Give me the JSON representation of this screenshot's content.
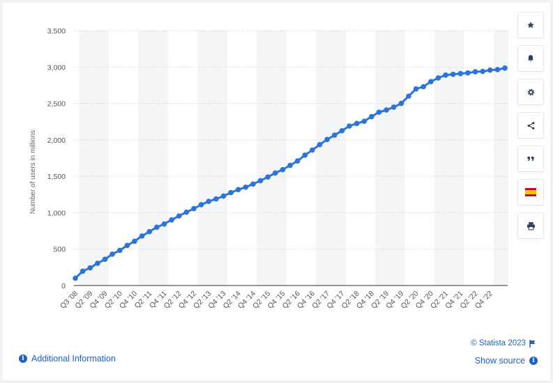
{
  "chart_data": {
    "type": "line",
    "title": "",
    "xlabel": "",
    "ylabel": "Number of users in millions",
    "ylim": [
      0,
      3500
    ],
    "yticks": [
      0,
      500,
      1000,
      1500,
      2000,
      2500,
      3000,
      3500
    ],
    "ytick_labels": [
      "0",
      "500",
      "1,000",
      "1,500",
      "2,000",
      "2,500",
      "3,000",
      "3,500"
    ],
    "grid": "horizontal-dotted",
    "series_color": "#2b74d8",
    "xtick_labels": [
      "Q3 '08",
      "Q2 '09",
      "Q4 '09",
      "Q2 '10",
      "Q4 '10",
      "Q2 '11",
      "Q4 '11",
      "Q2 '12",
      "Q4 '12",
      "Q2 '13",
      "Q4 '13",
      "Q2 '14",
      "Q4 '14",
      "Q2 '15",
      "Q4 '15",
      "Q2 '16",
      "Q4 '16",
      "Q2 '17",
      "Q4 '17",
      "Q2 '18",
      "Q4 '18",
      "Q2 '19",
      "Q4 '19",
      "Q2 '20",
      "Q4 '20",
      "Q2 '21",
      "Q4 '21",
      "Q2 '22",
      "Q4 '22"
    ],
    "x": [
      "Q3 '08",
      "Q4 '08",
      "Q1 '09",
      "Q2 '09",
      "Q3 '09",
      "Q4 '09",
      "Q1 '10",
      "Q2 '10",
      "Q3 '10",
      "Q4 '10",
      "Q1 '11",
      "Q2 '11",
      "Q3 '11",
      "Q4 '11",
      "Q1 '12",
      "Q2 '12",
      "Q3 '12",
      "Q4 '12",
      "Q1 '13",
      "Q2 '13",
      "Q3 '13",
      "Q4 '13",
      "Q1 '14",
      "Q2 '14",
      "Q3 '14",
      "Q4 '14",
      "Q1 '15",
      "Q2 '15",
      "Q3 '15",
      "Q4 '15",
      "Q1 '16",
      "Q2 '16",
      "Q3 '16",
      "Q4 '16",
      "Q1 '17",
      "Q2 '17",
      "Q3 '17",
      "Q4 '17",
      "Q1 '18",
      "Q2 '18",
      "Q3 '18",
      "Q4 '18",
      "Q1 '19",
      "Q2 '19",
      "Q3 '19",
      "Q4 '19",
      "Q1 '20",
      "Q2 '20",
      "Q3 '20",
      "Q4 '20",
      "Q1 '21",
      "Q2 '21",
      "Q3 '21",
      "Q4 '21",
      "Q1 '22",
      "Q2 '22",
      "Q3 '22",
      "Q4 '22",
      "Q1 '23"
    ],
    "values": [
      100,
      197,
      242,
      305,
      360,
      431,
      482,
      550,
      608,
      680,
      739,
      800,
      845,
      901,
      955,
      1007,
      1056,
      1110,
      1155,
      1189,
      1228,
      1276,
      1317,
      1350,
      1393,
      1440,
      1490,
      1545,
      1591,
      1650,
      1710,
      1790,
      1860,
      1935,
      2005,
      2065,
      2125,
      2190,
      2225,
      2255,
      2320,
      2380,
      2410,
      2450,
      2500,
      2600,
      2700,
      2730,
      2800,
      2850,
      2890,
      2900,
      2910,
      2920,
      2935,
      2940,
      2958,
      2965,
      2985
    ],
    "footer": {
      "copyright": "© Statista 2023",
      "additional_info": "Additional Information",
      "show_source": "Show source"
    }
  },
  "colors": {
    "accent": "#1f60c8",
    "line": "#2b74d8"
  },
  "toolbar": {
    "icons": [
      "star-icon",
      "bell-icon",
      "gear-icon",
      "share-icon",
      "quote-icon",
      "spain-flag-icon",
      "print-icon"
    ]
  }
}
